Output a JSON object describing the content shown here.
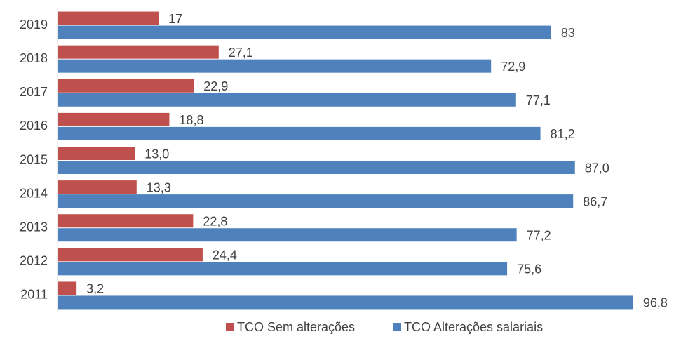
{
  "chart_data": {
    "type": "bar",
    "orientation": "horizontal",
    "categories": [
      "2019",
      "2018",
      "2017",
      "2016",
      "2015",
      "2014",
      "2013",
      "2012",
      "2011"
    ],
    "series": [
      {
        "name": "TCO Sem alterações",
        "color": "#c0504d",
        "values": [
          17,
          27.1,
          22.9,
          18.8,
          13.0,
          13.3,
          22.8,
          24.4,
          3.2
        ],
        "value_labels": [
          "17",
          "27,1",
          "22,9",
          "18,8",
          "13,0",
          "13,3",
          "22,8",
          "24,4",
          "3,2"
        ]
      },
      {
        "name": "TCO Alterações salariais",
        "color": "#4f81bd",
        "values": [
          83,
          72.9,
          77.1,
          81.2,
          87.0,
          86.7,
          77.2,
          75.6,
          96.8
        ],
        "value_labels": [
          "83",
          "72,9",
          "77,1",
          "81,2",
          "87,0",
          "86,7",
          "77,2",
          "75,6",
          "96,8"
        ]
      }
    ],
    "xlim": [
      0,
      100
    ],
    "legend": "bottom"
  }
}
